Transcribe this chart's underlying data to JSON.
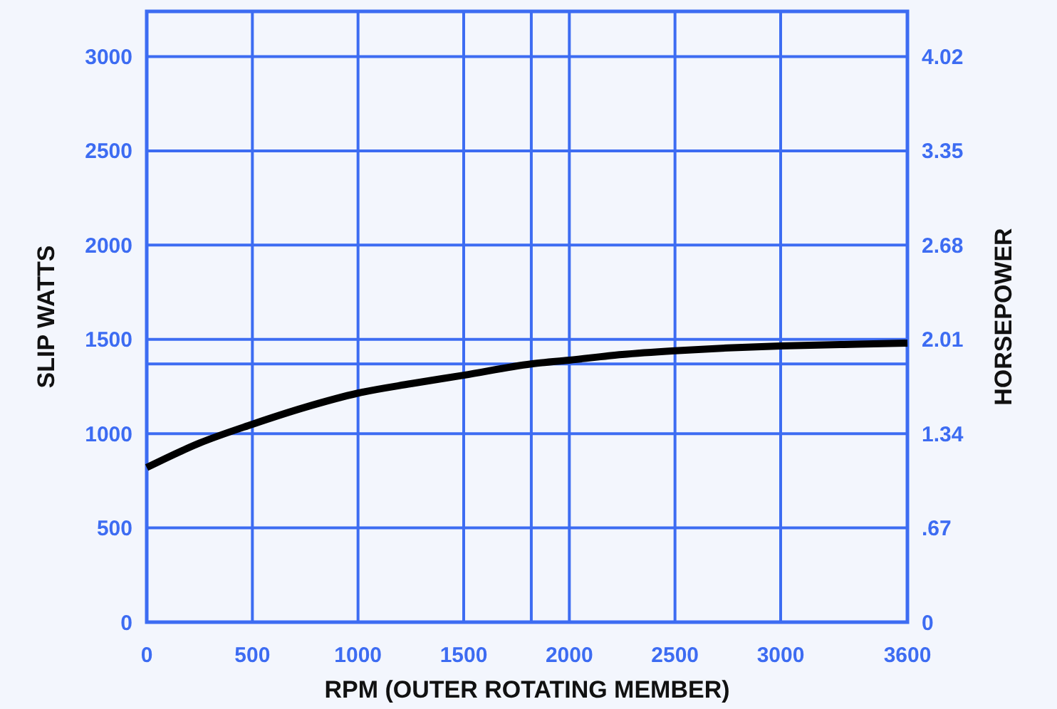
{
  "chart_data": {
    "type": "line",
    "xlabel": "RPM (OUTER ROTATING MEMBER)",
    "ylabel": "SLIP WATTS",
    "y2label": "HORSEPOWER",
    "x": [
      0,
      250,
      500,
      750,
      1000,
      1250,
      1500,
      1820,
      2000,
      2250,
      2500,
      2750,
      3000,
      3300,
      3600
    ],
    "series": [
      {
        "color": "#000000",
        "values": [
          820,
          950,
          1050,
          1140,
          1215,
          1265,
          1310,
          1370,
          1390,
          1420,
          1440,
          1455,
          1465,
          1473,
          1480
        ]
      }
    ],
    "xlim": [
      0,
      3600
    ],
    "xticks": [
      0,
      500,
      1000,
      1500,
      2000,
      2500,
      3000,
      3600
    ],
    "ylim": [
      0,
      3240
    ],
    "yticks": [
      0,
      500,
      1000,
      1500,
      2000,
      2500,
      3000
    ],
    "y2lim": [
      0,
      4.34
    ],
    "y2ticks": [
      {
        "value": 0,
        "label": "0"
      },
      {
        "value": 0.67,
        "label": ".67"
      },
      {
        "value": 1.34,
        "label": "1.34"
      },
      {
        "value": 2.01,
        "label": "2.01"
      },
      {
        "value": 2.68,
        "label": "2.68"
      },
      {
        "value": 3.35,
        "label": "3.35"
      },
      {
        "value": 4.02,
        "label": "4.02"
      }
    ],
    "ref_lines": [
      {
        "axis": "x",
        "value": 1820,
        "color": "#3d6cf2"
      },
      {
        "axis": "y",
        "value": 1370,
        "color": "#3d6cf2"
      }
    ],
    "grid": true,
    "marker": "none",
    "line_style": "solid"
  }
}
